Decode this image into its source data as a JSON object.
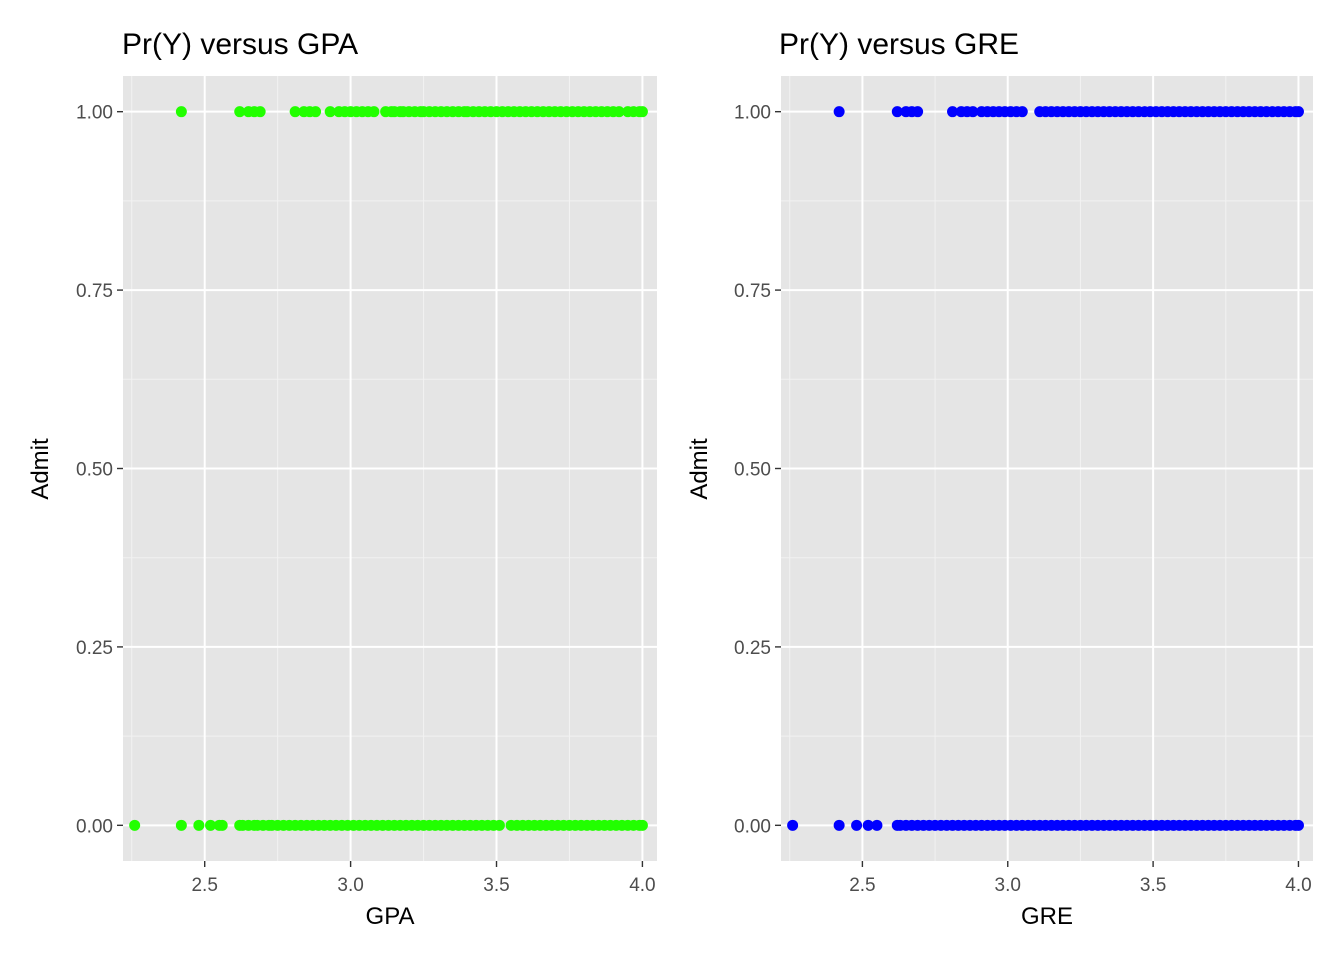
{
  "chart_data": [
    {
      "type": "scatter",
      "title": "Pr(Y) versus GPA",
      "xlabel": "GPA",
      "ylabel": "Admit",
      "xlim": [
        2.22,
        4.05
      ],
      "ylim": [
        -0.05,
        1.05
      ],
      "x_ticks": [
        2.5,
        3.0,
        3.5,
        4.0
      ],
      "x_tick_labels": [
        "2.5",
        "3.0",
        "3.5",
        "4.0"
      ],
      "y_ticks": [
        0,
        0.25,
        0.5,
        0.75,
        1
      ],
      "y_tick_labels": [
        "0.00",
        "0.25",
        "0.50",
        "0.75",
        "1.00"
      ],
      "grid": true,
      "point_color": "#22ff00",
      "series": [
        {
          "y": 1,
          "x": [
            2.42,
            2.62,
            2.65,
            2.67,
            2.69,
            2.81,
            2.84,
            2.86,
            2.88,
            2.93,
            2.96,
            2.98,
            3.0,
            3.02,
            3.04,
            3.06,
            3.08,
            3.12,
            3.14,
            3.15,
            3.17,
            3.18,
            3.2,
            3.22,
            3.24,
            3.25,
            3.27,
            3.29,
            3.31,
            3.33,
            3.35,
            3.37,
            3.39,
            3.4,
            3.42,
            3.44,
            3.46,
            3.48,
            3.5,
            3.52,
            3.54,
            3.56,
            3.58,
            3.6,
            3.62,
            3.64,
            3.66,
            3.68,
            3.7,
            3.72,
            3.74,
            3.76,
            3.78,
            3.8,
            3.82,
            3.84,
            3.86,
            3.88,
            3.9,
            3.92,
            3.95,
            3.97,
            3.99,
            4.0
          ]
        },
        {
          "y": 0,
          "x": [
            2.26,
            2.42,
            2.48,
            2.52,
            2.55,
            2.56,
            2.62,
            2.63,
            2.65,
            2.67,
            2.68,
            2.7,
            2.72,
            2.73,
            2.75,
            2.77,
            2.79,
            2.81,
            2.83,
            2.85,
            2.87,
            2.89,
            2.91,
            2.93,
            2.95,
            2.97,
            2.99,
            3.01,
            3.03,
            3.05,
            3.07,
            3.09,
            3.11,
            3.13,
            3.15,
            3.17,
            3.19,
            3.21,
            3.23,
            3.25,
            3.27,
            3.29,
            3.31,
            3.33,
            3.35,
            3.37,
            3.39,
            3.41,
            3.43,
            3.45,
            3.47,
            3.49,
            3.51,
            3.55,
            3.57,
            3.59,
            3.61,
            3.63,
            3.65,
            3.67,
            3.69,
            3.71,
            3.73,
            3.75,
            3.77,
            3.79,
            3.81,
            3.83,
            3.85,
            3.87,
            3.89,
            3.91,
            3.93,
            3.95,
            3.97,
            3.99,
            4.0
          ]
        }
      ]
    },
    {
      "type": "scatter",
      "title": "Pr(Y) versus GRE",
      "xlabel": "GRE",
      "ylabel": "Admit",
      "xlim": [
        2.22,
        4.05
      ],
      "ylim": [
        -0.05,
        1.05
      ],
      "x_ticks": [
        2.5,
        3.0,
        3.5,
        4.0
      ],
      "x_tick_labels": [
        "2.5",
        "3.0",
        "3.5",
        "4.0"
      ],
      "y_ticks": [
        0,
        0.25,
        0.5,
        0.75,
        1
      ],
      "y_tick_labels": [
        "0.00",
        "0.25",
        "0.50",
        "0.75",
        "1.00"
      ],
      "grid": true,
      "point_color": "#0000ff",
      "series": [
        {
          "y": 1,
          "x": [
            2.42,
            2.62,
            2.65,
            2.67,
            2.69,
            2.81,
            2.84,
            2.86,
            2.88,
            2.91,
            2.93,
            2.95,
            2.97,
            2.99,
            3.01,
            3.03,
            3.05,
            3.11,
            3.13,
            3.15,
            3.17,
            3.19,
            3.21,
            3.23,
            3.25,
            3.27,
            3.29,
            3.31,
            3.33,
            3.35,
            3.37,
            3.39,
            3.41,
            3.43,
            3.45,
            3.47,
            3.49,
            3.51,
            3.53,
            3.55,
            3.57,
            3.59,
            3.61,
            3.63,
            3.65,
            3.67,
            3.69,
            3.71,
            3.73,
            3.75,
            3.77,
            3.79,
            3.81,
            3.83,
            3.85,
            3.87,
            3.89,
            3.91,
            3.93,
            3.95,
            3.97,
            3.99,
            4.0
          ]
        },
        {
          "y": 0,
          "x": [
            2.26,
            2.42,
            2.48,
            2.52,
            2.55,
            2.62,
            2.63,
            2.65,
            2.67,
            2.69,
            2.71,
            2.73,
            2.75,
            2.77,
            2.79,
            2.81,
            2.83,
            2.85,
            2.87,
            2.89,
            2.91,
            2.93,
            2.95,
            2.97,
            2.99,
            3.01,
            3.03,
            3.05,
            3.07,
            3.09,
            3.11,
            3.13,
            3.15,
            3.17,
            3.19,
            3.21,
            3.23,
            3.25,
            3.27,
            3.29,
            3.31,
            3.33,
            3.35,
            3.37,
            3.39,
            3.41,
            3.43,
            3.45,
            3.47,
            3.49,
            3.51,
            3.53,
            3.55,
            3.57,
            3.59,
            3.61,
            3.63,
            3.65,
            3.67,
            3.69,
            3.71,
            3.73,
            3.75,
            3.77,
            3.79,
            3.81,
            3.83,
            3.85,
            3.87,
            3.89,
            3.91,
            3.93,
            3.95,
            3.97,
            3.99,
            4.0
          ]
        }
      ]
    }
  ]
}
